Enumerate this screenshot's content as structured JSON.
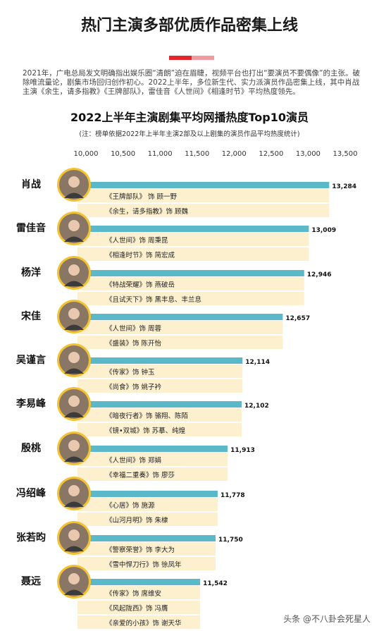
{
  "header": {
    "title": "热门主演多部优质作品密集上线",
    "intro": "2021年，广电总局发文明确指出娱乐圈“清朗”迫在眉睫，视频平台也打出“要演员不要偶像”的主张。破除唯流量论，剧集市场回归创作初心。2022上半年，多位新生代、实力派演员作品密集上线，其中肖战主演《余生，请多指教》《王牌部队》，雷佳音《人世间》《相逢时节》平均热度领先。"
  },
  "watermark": "头条 @不八卦会死星人",
  "colors": {
    "bar": "#5ab8c9",
    "role_bg": "#fdf0cf",
    "title_red": "#e1262c",
    "avatar_ring": "#f2c232"
  },
  "chart_data": {
    "type": "bar",
    "title": "2022上半年主演剧集平均网播热度Top10演员",
    "subtitle": "(注：榜单依据2022年上半年主演2部及以上剧集的演员作品平均热度统计)",
    "xlim": [
      10000,
      13500
    ],
    "ticks": [
      10000,
      10500,
      11000,
      11500,
      12000,
      12500,
      13000,
      13500
    ],
    "tick_labels": [
      "10,000",
      "10,500",
      "11,000",
      "11,500",
      "12,000",
      "12,500",
      "13,000",
      "13,500"
    ],
    "categories": [
      "肖战",
      "雷佳音",
      "杨洋",
      "宋佳",
      "吴谨言",
      "李易峰",
      "殷桃",
      "冯绍峰",
      "张若昀",
      "聂远"
    ],
    "values": [
      13284,
      13009,
      12946,
      12657,
      12114,
      12102,
      11913,
      11778,
      11750,
      11542
    ],
    "value_labels": [
      "13,284",
      "13,009",
      "12,946",
      "12,657",
      "12,114",
      "12,102",
      "11,913",
      "11,778",
      "11,750",
      "11,542"
    ],
    "roles": [
      [
        "《王牌部队》 饰 顾一野",
        "《余生，请多指教》饰 顾魏"
      ],
      [
        "《人世间》饰 周秉昆",
        "《相逢时节》饰 简宏成"
      ],
      [
        "《特战荣耀》饰 燕破岳",
        "《且试天下》饰  黑丰息、丰兰息"
      ],
      [
        "《人世间》饰 周蓉",
        "《盛装》饰 陈开怡"
      ],
      [
        "《传家》饰 钟玉",
        "《尚食》饰 姚子衿"
      ],
      [
        "《暗夜行者》饰 骆翔、陈陌",
        "《镜•双城》饰 苏摹、纯煌"
      ],
      [
        "《人世间》饰 郑娟",
        "《幸福二重奏》饰 廖莎"
      ],
      [
        "《心居》饰 施源",
        "《山河月明》饰 朱棣"
      ],
      [
        "《警察荣誉》饰 李大为",
        "《雪中悍刀行》饰 徐凤年"
      ],
      [
        "《传家》饰 席维安",
        "《风起陇西》饰 冯膺",
        "《亲爱的小孩》饰 谢天华"
      ]
    ]
  }
}
